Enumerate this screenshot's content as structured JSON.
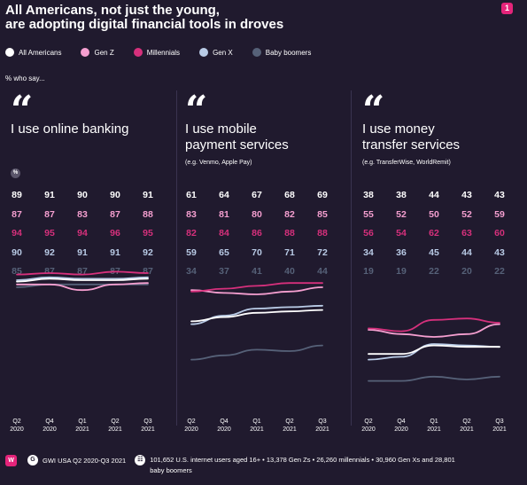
{
  "header": {
    "title_line1": "All Americans, not just the young,",
    "title_line2": "are adopting digital financial tools in droves",
    "page_number": "1"
  },
  "legend": [
    {
      "name": "All Americans",
      "color": "#ffffff"
    },
    {
      "name": "Gen Z",
      "color": "#f59fd0"
    },
    {
      "name": "Millennials",
      "color": "#d6307c"
    },
    {
      "name": "Gen X",
      "color": "#b9cbe6"
    },
    {
      "name": "Baby boomers",
      "color": "#566178"
    }
  ],
  "subhead": "% who say...",
  "percent_icon": "%",
  "quote_mark": "“",
  "chart_data": [
    {
      "type": "line",
      "title_line1": "I use online banking",
      "title_line2": "",
      "note": "",
      "categories": [
        [
          "Q2",
          "2020"
        ],
        [
          "Q4",
          "2020"
        ],
        [
          "Q1",
          "2021"
        ],
        [
          "Q2",
          "2021"
        ],
        [
          "Q3",
          "2021"
        ]
      ],
      "series": [
        {
          "name": "All Americans",
          "color": "#ffffff",
          "values": [
            89,
            91,
            90,
            90,
            91
          ]
        },
        {
          "name": "Gen Z",
          "color": "#f59fd0",
          "values": [
            87,
            87,
            83,
            87,
            88
          ]
        },
        {
          "name": "Millennials",
          "color": "#d6307c",
          "values": [
            94,
            95,
            94,
            96,
            95
          ]
        },
        {
          "name": "Gen X",
          "color": "#b9cbe6",
          "values": [
            90,
            92,
            91,
            91,
            92
          ]
        },
        {
          "name": "Baby boomers",
          "color": "#566178",
          "values": [
            85,
            87,
            87,
            87,
            87
          ]
        }
      ]
    },
    {
      "type": "line",
      "title_line1": "I use mobile",
      "title_line2": "payment services",
      "note": "(e.g. Venmo, Apple Pay)",
      "categories": [
        [
          "Q2",
          "2020"
        ],
        [
          "Q4",
          "2020"
        ],
        [
          "Q1",
          "2021"
        ],
        [
          "Q2",
          "2021"
        ],
        [
          "Q3",
          "2021"
        ]
      ],
      "series": [
        {
          "name": "All Americans",
          "color": "#ffffff",
          "values": [
            61,
            64,
            67,
            68,
            69
          ]
        },
        {
          "name": "Gen Z",
          "color": "#f59fd0",
          "values": [
            83,
            81,
            80,
            82,
            85
          ]
        },
        {
          "name": "Millennials",
          "color": "#d6307c",
          "values": [
            82,
            84,
            86,
            88,
            88
          ]
        },
        {
          "name": "Gen X",
          "color": "#b9cbe6",
          "values": [
            59,
            65,
            70,
            71,
            72
          ]
        },
        {
          "name": "Baby boomers",
          "color": "#566178",
          "values": [
            34,
            37,
            41,
            40,
            44
          ]
        }
      ]
    },
    {
      "type": "line",
      "title_line1": "I use money",
      "title_line2": "transfer services",
      "note": "(e.g. TransferWise, WorldRemit)",
      "categories": [
        [
          "Q2",
          "2020"
        ],
        [
          "Q4",
          "2020"
        ],
        [
          "Q1",
          "2021"
        ],
        [
          "Q2",
          "2021"
        ],
        [
          "Q3",
          "2021"
        ]
      ],
      "series": [
        {
          "name": "All Americans",
          "color": "#ffffff",
          "values": [
            38,
            38,
            44,
            43,
            43
          ]
        },
        {
          "name": "Gen Z",
          "color": "#f59fd0",
          "values": [
            55,
            52,
            50,
            52,
            59
          ]
        },
        {
          "name": "Millennials",
          "color": "#d6307c",
          "values": [
            56,
            54,
            62,
            63,
            60
          ]
        },
        {
          "name": "Gen X",
          "color": "#b9cbe6",
          "values": [
            34,
            36,
            45,
            44,
            43
          ]
        },
        {
          "name": "Baby boomers",
          "color": "#566178",
          "values": [
            19,
            19,
            22,
            20,
            22
          ]
        }
      ]
    }
  ],
  "footer": {
    "brand": "W",
    "source_icon": "G",
    "source": "GWI USA Q2 2020-Q3 2021",
    "sample_icon": "☷",
    "sample_line1": "101,652 U.S. internet users aged 16+ • 13,378 Gen Zs • 26,260 millennials • 30,960 Gen Xs and 28,801",
    "sample_line2": "baby boomers"
  }
}
